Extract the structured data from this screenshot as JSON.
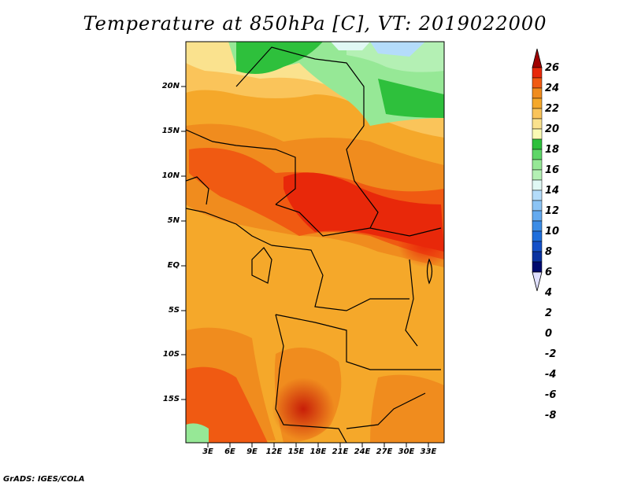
{
  "title": "Temperature at 850hPa [C], VT: 2019022000",
  "credit": "GrADS: IGES/COLA",
  "latitude_labels": [
    "20N",
    "15N",
    "10N",
    "5N",
    "EQ",
    "5S",
    "10S",
    "15S"
  ],
  "longitude_labels": [
    "3E",
    "6E",
    "9E",
    "12E",
    "15E",
    "18E",
    "21E",
    "24E",
    "27E",
    "30E",
    "33E"
  ],
  "colorbar": {
    "labels": [
      "26",
      "24",
      "22",
      "20",
      "18",
      "16",
      "14",
      "12",
      "10",
      "8",
      "6",
      "4",
      "2",
      "0",
      "-2",
      "-4",
      "-6",
      "-8"
    ],
    "colors": [
      "#a00000",
      "#e8280a",
      "#f05a12",
      "#f08c1e",
      "#f5a82a",
      "#fac45a",
      "#fae28e",
      "#fafab4",
      "#2ec03c",
      "#5ed668",
      "#96e896",
      "#b4f0b4",
      "#e0f8f4",
      "#b4dcfa",
      "#8cc4f5",
      "#64aaf0",
      "#3c8ce6",
      "#1e6edc",
      "#1450c8",
      "#0a32a0",
      "#000a6e",
      "#e0e0ff"
    ]
  }
}
